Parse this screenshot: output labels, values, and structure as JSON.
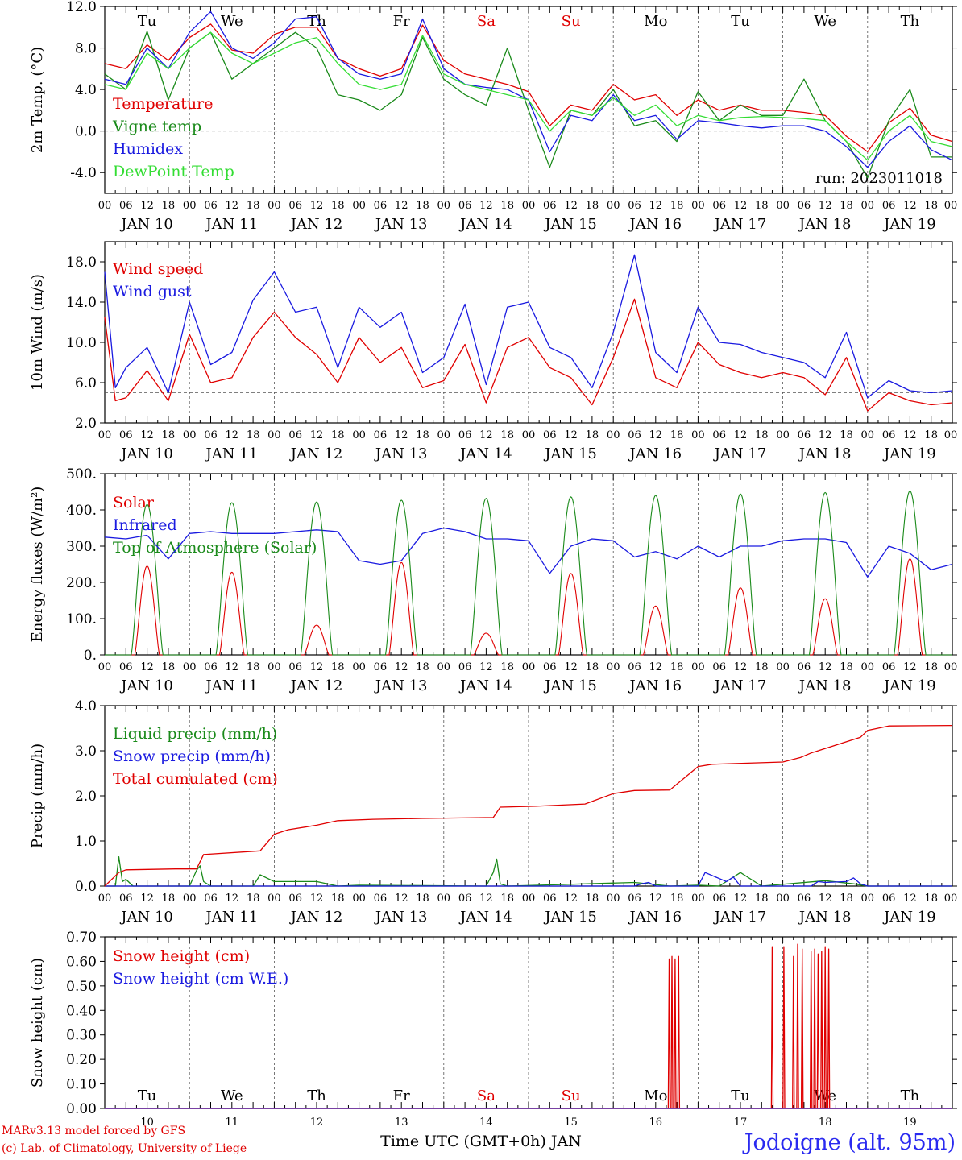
{
  "colors": {
    "red": "#e00000",
    "green": "#1a8a1a",
    "blue": "#1a1ae0",
    "lightgreen": "#33dd33",
    "axis": "#000000",
    "grid": "#555555"
  },
  "day_labels": [
    "Tu",
    "We",
    "Th",
    "Fr",
    "Sa",
    "Su",
    "Mo",
    "Tu",
    "We",
    "Th"
  ],
  "weekend_days": [
    "Sa",
    "Su"
  ],
  "date_labels": [
    "JAN 10",
    "JAN 11",
    "JAN 12",
    "JAN 13",
    "JAN 14",
    "JAN 15",
    "JAN 16",
    "JAN 17",
    "JAN 18",
    "JAN 19"
  ],
  "hour_ticks": [
    "00",
    "06",
    "12",
    "18"
  ],
  "final_hour_tick": "00",
  "bottom_day_numbers": [
    "10",
    "11",
    "12",
    "13",
    "14",
    "15",
    "16",
    "17",
    "18",
    "19"
  ],
  "x_axis_title": "Time UTC (GMT+0h) JAN",
  "credit_line1": "MARv3.13 model forced by GFS",
  "credit_line2": "(c) Lab. of Climatology, University of Liege",
  "station": "Jodoigne (alt. 95m)",
  "chart_data": [
    {
      "type": "line",
      "ylabel": "2m Temp. (°C)",
      "ylim": [
        -6,
        12
      ],
      "yticks": [
        "12.0",
        "8.0",
        "4.0",
        "0.0",
        "-4.0"
      ],
      "ytick_values": [
        12,
        8,
        4,
        0,
        -4
      ],
      "reference_line": 0,
      "run_label": "run: 2023011018",
      "x": [
        0,
        6,
        12,
        18,
        24,
        30,
        36,
        42,
        48,
        54,
        60,
        66,
        72,
        78,
        84,
        90,
        96,
        102,
        108,
        114,
        120,
        126,
        132,
        138,
        144,
        150,
        156,
        162,
        168,
        174,
        180,
        186,
        192,
        198,
        204,
        210,
        216,
        222,
        228,
        234,
        240
      ],
      "series": [
        {
          "name": "Temperature",
          "color": "red",
          "values": [
            6.5,
            6.0,
            8.3,
            6.8,
            9.0,
            10.3,
            7.8,
            7.5,
            9.3,
            10.0,
            10.0,
            7.0,
            6.0,
            5.3,
            6.0,
            10.2,
            6.8,
            5.5,
            5.0,
            4.5,
            3.8,
            0.5,
            2.5,
            2.0,
            4.5,
            3.0,
            3.5,
            1.5,
            3.0,
            2.0,
            2.5,
            2.0,
            2.0,
            1.8,
            1.5,
            -0.5,
            -2.0,
            0.8,
            2.2,
            -0.4,
            -1.0
          ]
        },
        {
          "name": "Vigne temp",
          "color": "green",
          "values": [
            5.5,
            4.0,
            9.6,
            3.0,
            8.0,
            9.5,
            5.0,
            6.5,
            8.0,
            9.5,
            8.0,
            3.5,
            3.0,
            2.0,
            3.5,
            9.0,
            5.0,
            3.5,
            2.5,
            8.0,
            2.0,
            -3.5,
            2.0,
            1.5,
            4.0,
            0.5,
            1.0,
            -1.0,
            3.8,
            1.0,
            2.5,
            1.5,
            1.5,
            5.0,
            1.0,
            -1.0,
            -4.5,
            1.0,
            4.0,
            -2.5,
            -2.5
          ]
        },
        {
          "name": "Humidex",
          "color": "blue",
          "values": [
            5.0,
            4.5,
            8.0,
            6.0,
            9.5,
            11.5,
            8.0,
            7.0,
            8.5,
            10.8,
            11.0,
            7.0,
            5.5,
            5.0,
            5.5,
            10.8,
            6.0,
            4.5,
            4.2,
            4.0,
            3.0,
            -2.0,
            1.5,
            1.0,
            3.5,
            1.0,
            1.5,
            -0.8,
            1.0,
            0.8,
            0.5,
            0.3,
            0.5,
            0.5,
            0.0,
            -1.5,
            -3.5,
            -1.0,
            0.5,
            -1.8,
            -2.8
          ]
        },
        {
          "name": "DewPoint Temp",
          "color": "lightgreen",
          "values": [
            4.5,
            4.0,
            7.5,
            6.0,
            8.0,
            9.5,
            7.5,
            6.5,
            7.5,
            8.5,
            9.0,
            6.5,
            4.5,
            4.0,
            4.5,
            9.2,
            5.5,
            4.5,
            4.0,
            3.5,
            3.0,
            0.0,
            2.0,
            1.5,
            3.2,
            1.5,
            2.5,
            0.5,
            1.5,
            1.0,
            1.3,
            1.4,
            1.3,
            1.2,
            1.0,
            -1.0,
            -2.8,
            0.0,
            1.5,
            -1.0,
            -1.5
          ]
        }
      ]
    },
    {
      "type": "line",
      "ylabel": "10m Wind (m/s)",
      "ylim": [
        2,
        20
      ],
      "yticks": [
        "18.0",
        "14.0",
        "10.0",
        "6.0",
        "2.0"
      ],
      "ytick_values": [
        18,
        14,
        10,
        6,
        2
      ],
      "reference_line": 5,
      "x": [
        0,
        3,
        6,
        12,
        18,
        24,
        30,
        36,
        42,
        48,
        54,
        60,
        66,
        72,
        78,
        84,
        90,
        96,
        102,
        108,
        114,
        120,
        126,
        132,
        138,
        144,
        150,
        156,
        162,
        168,
        174,
        180,
        186,
        192,
        198,
        204,
        210,
        216,
        222,
        228,
        234,
        240
      ],
      "series": [
        {
          "name": "Wind speed",
          "color": "red",
          "values": [
            12.5,
            4.2,
            4.5,
            7.2,
            4.2,
            10.8,
            6.0,
            6.5,
            10.5,
            13.0,
            10.5,
            8.8,
            6.0,
            10.5,
            8.0,
            9.5,
            5.5,
            6.2,
            9.8,
            4.0,
            9.5,
            10.5,
            7.5,
            6.5,
            3.8,
            8.5,
            14.3,
            6.5,
            5.5,
            10.0,
            7.8,
            7.0,
            6.5,
            7.0,
            6.5,
            4.8,
            8.5,
            3.2,
            5.0,
            4.2,
            3.8,
            4.0
          ]
        },
        {
          "name": "Wind gust",
          "color": "blue",
          "values": [
            17.0,
            5.5,
            7.5,
            9.5,
            5.0,
            14.0,
            7.8,
            9.0,
            14.2,
            17.0,
            13.0,
            13.5,
            7.5,
            13.5,
            11.5,
            13.0,
            7.0,
            8.5,
            13.8,
            5.8,
            13.5,
            14.0,
            9.5,
            8.5,
            5.5,
            11.0,
            18.7,
            9.0,
            7.0,
            13.5,
            10.0,
            9.8,
            9.0,
            8.5,
            8.0,
            6.5,
            11.0,
            4.5,
            6.2,
            5.2,
            5.0,
            5.2
          ]
        }
      ]
    },
    {
      "type": "line",
      "ylabel": "Energy fluxes (W/m²)",
      "ylim": [
        0,
        500
      ],
      "yticks": [
        "500.",
        "400.",
        "300.",
        "200.",
        "100.",
        "0."
      ],
      "ytick_values": [
        500,
        400,
        300,
        200,
        100,
        0
      ],
      "series": [
        {
          "name": "Solar",
          "color": "red",
          "daily_peak": [
            245,
            228,
            82,
            255,
            60,
            225,
            135,
            185,
            155,
            265
          ]
        },
        {
          "name": "Infrared",
          "color": "blue",
          "x": [
            0,
            6,
            12,
            18,
            24,
            30,
            36,
            42,
            48,
            54,
            60,
            66,
            72,
            78,
            84,
            90,
            96,
            102,
            108,
            114,
            120,
            126,
            132,
            138,
            144,
            150,
            156,
            162,
            168,
            174,
            180,
            186,
            192,
            198,
            204,
            210,
            216,
            222,
            228,
            234,
            240
          ],
          "values": [
            325,
            320,
            330,
            265,
            335,
            340,
            335,
            335,
            335,
            340,
            345,
            340,
            260,
            250,
            260,
            335,
            350,
            340,
            320,
            320,
            315,
            225,
            300,
            320,
            315,
            270,
            285,
            265,
            300,
            270,
            300,
            300,
            315,
            320,
            320,
            310,
            215,
            300,
            280,
            235,
            250
          ]
        },
        {
          "name": "Top of Atmosphere (Solar)",
          "color": "green",
          "daily_peak": [
            415,
            420,
            422,
            427,
            432,
            436,
            440,
            444,
            448,
            452
          ]
        }
      ]
    },
    {
      "type": "line",
      "ylabel": "Precip (mm/h)",
      "ylim": [
        0,
        4
      ],
      "yticks": [
        "4.0",
        "3.0",
        "2.0",
        "1.0",
        "0.0"
      ],
      "ytick_values": [
        4,
        3,
        2,
        1,
        0
      ],
      "series": [
        {
          "name": "Liquid precip (mm/h)",
          "color": "green",
          "x": [
            0,
            3,
            4,
            5,
            6,
            8,
            24,
            26,
            27,
            28,
            30,
            42,
            44,
            48,
            60,
            66,
            72,
            108,
            110,
            111,
            112,
            114,
            150,
            160,
            168,
            174,
            180,
            186,
            204,
            212,
            216,
            240
          ],
          "values": [
            0,
            0,
            0.65,
            0.1,
            0.15,
            0,
            0,
            0.35,
            0.45,
            0.1,
            0,
            0,
            0.25,
            0.1,
            0.1,
            0,
            0.02,
            0,
            0.3,
            0.6,
            0.05,
            0,
            0.08,
            0,
            0.02,
            0,
            0.3,
            0,
            0.12,
            0.05,
            0,
            0
          ]
        },
        {
          "name": "Snow precip (mm/h)",
          "color": "blue",
          "x": [
            0,
            150,
            152,
            154,
            156,
            168,
            170,
            176,
            178,
            180,
            200,
            202,
            204,
            210,
            212,
            214,
            216,
            240
          ],
          "values": [
            0,
            0,
            0.05,
            0.08,
            0,
            0,
            0.3,
            0.1,
            0.2,
            0,
            0,
            0.1,
            0.08,
            0.1,
            0.18,
            0.05,
            0,
            0
          ]
        },
        {
          "name": "Total cumulated (cm)",
          "color": "red",
          "x": [
            0,
            4,
            6,
            20,
            26,
            28,
            44,
            48,
            52,
            60,
            66,
            76,
            90,
            110,
            112,
            122,
            136,
            144,
            150,
            160,
            168,
            172,
            192,
            197,
            200,
            214,
            216,
            222,
            240
          ],
          "values": [
            0,
            0.3,
            0.36,
            0.38,
            0.38,
            0.7,
            0.78,
            1.15,
            1.25,
            1.35,
            1.45,
            1.48,
            1.5,
            1.52,
            1.75,
            1.77,
            1.82,
            2.05,
            2.12,
            2.13,
            2.65,
            2.7,
            2.75,
            2.85,
            2.95,
            3.3,
            3.45,
            3.55,
            3.56
          ]
        }
      ]
    },
    {
      "type": "line",
      "ylabel": "Snow height (cm)",
      "ylim": [
        0,
        0.7
      ],
      "yticks": [
        "0.70",
        "0.60",
        "0.50",
        "0.40",
        "0.30",
        "0.20",
        "0.10",
        "0.00"
      ],
      "ytick_values": [
        0.7,
        0.6,
        0.5,
        0.4,
        0.3,
        0.2,
        0.1,
        0
      ],
      "series": [
        {
          "name": "Snow height (cm)",
          "color": "red",
          "spikes_x": [
            159.8,
            160.6,
            161.5,
            162.5,
            189.0,
            192.3,
            195.0,
            196.2,
            197.5,
            200.0,
            201.0,
            202.0,
            203.0,
            204.0,
            205.0
          ],
          "spikes_y": [
            0.61,
            0.62,
            0.61,
            0.62,
            0.66,
            0.66,
            0.62,
            0.67,
            0.65,
            0.64,
            0.65,
            0.63,
            0.64,
            0.66,
            0.65
          ]
        },
        {
          "name": "Snow height (cm W.E.)",
          "color": "blue",
          "values": [
            0
          ]
        }
      ]
    }
  ]
}
